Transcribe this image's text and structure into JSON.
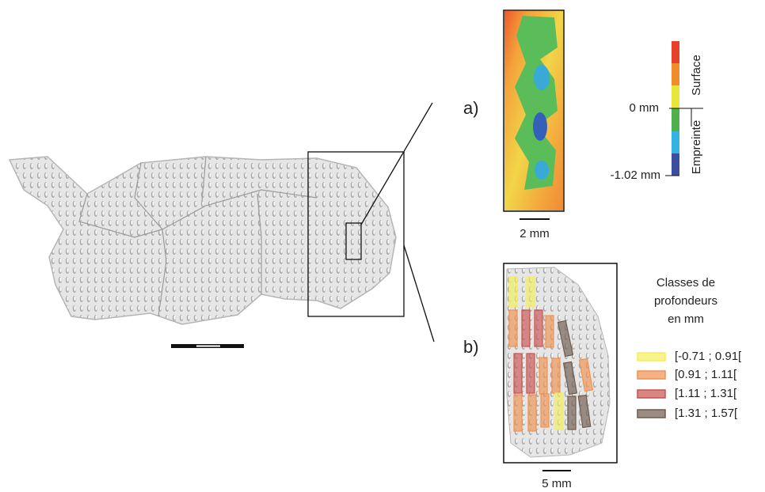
{
  "panels": {
    "a": {
      "label": "a)",
      "scale_bar": "2 mm"
    },
    "b": {
      "label": "b)",
      "scale_bar": "5 mm"
    }
  },
  "color_scale": {
    "top_label": "0 mm",
    "bottom_label": "-1.02 mm",
    "upper_name": "Surface",
    "lower_name": "Empreinte"
  },
  "legend": {
    "title_lines": [
      "Classes de",
      "profondeurs",
      "en mm"
    ],
    "items": [
      {
        "label": "[-0.71 ; 0.91[",
        "color": "#f3ee5c"
      },
      {
        "label": "[0.91 ; 1.11[",
        "color": "#ef9250"
      },
      {
        "label": "[1.11 ; 1.31[",
        "color": "#c9534f"
      },
      {
        "label": "[1.31 ; 1.57[",
        "color": "#6f5b4e"
      }
    ]
  }
}
